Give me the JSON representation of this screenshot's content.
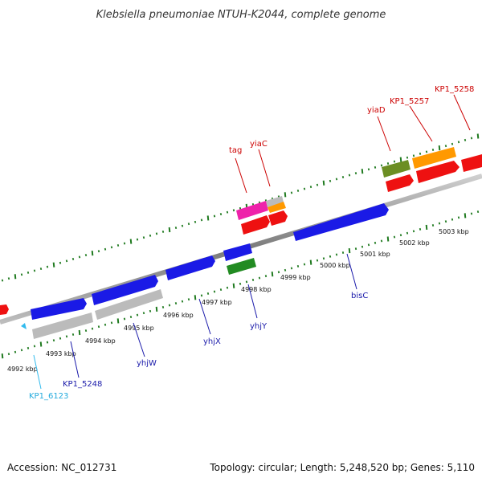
{
  "title": "Klebsiella pneumoniae NTUH-K2044, complete genome",
  "footer": {
    "accession": "Accession: NC_012731",
    "summary": "Topology: circular; Length: 5,248,520 bp; Genes: 5,110"
  },
  "colors": {
    "backbone": "#8a8a8a",
    "ticks": "#1f7a1f",
    "blue": "#1a1ae6",
    "gray": "#bbbbbb",
    "red": "#ee1111",
    "magenta": "#ee22aa",
    "orange": "#ff9900",
    "olive": "#6b8e23",
    "green": "#228b22",
    "cyan": "#33bbee",
    "label_red": "#cc0000",
    "label_blue": "#1a1aaa",
    "label_cyan": "#22aadd"
  },
  "scale_labels": [
    "4992 kbp",
    "4993 kbp",
    "4994 kbp",
    "4995 kbp",
    "4996 kbp",
    "4997 kbp",
    "4998 kbp",
    "4999 kbp",
    "5000 kbp",
    "5001 kbp",
    "5002 kbp",
    "5003 kbp"
  ],
  "gene_labels_top": [
    "tag",
    "yiaC",
    "yiaD",
    "KP1_5257",
    "KP1_5258"
  ],
  "gene_labels_bottom": [
    "KP1_6123",
    "KP1_5248",
    "yhjW",
    "yhjX",
    "yhjY",
    "bisC"
  ]
}
